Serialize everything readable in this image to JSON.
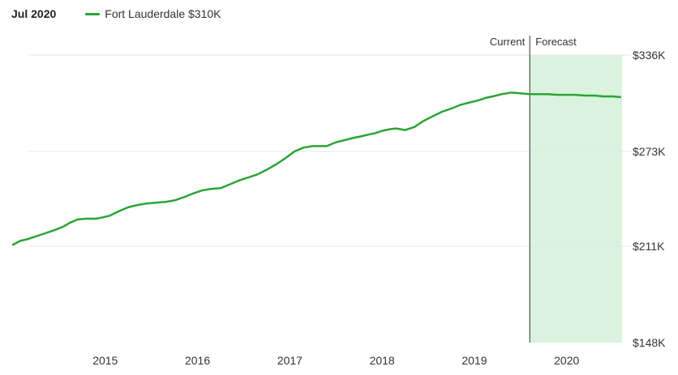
{
  "header": {
    "date": "Jul 2020",
    "legend_label": "Fort Lauderdale $310K"
  },
  "colors": {
    "series": "#2aa534",
    "forecast_fill": "#d9f3de",
    "grid": "#e6e6e6",
    "divider": "#333333"
  },
  "chart_data": {
    "type": "line",
    "x_tick_labels": [
      "2015",
      "2016",
      "2017",
      "2018",
      "2019",
      "2020"
    ],
    "x_tick_values": [
      2015,
      2016,
      2017,
      2018,
      2019,
      2020
    ],
    "xlim": [
      2014.0,
      2020.6
    ],
    "y_tick_labels": [
      "$148K",
      "$211K",
      "$273K",
      "$336K"
    ],
    "y_tick_values": [
      148,
      211,
      273,
      336
    ],
    "ylim": [
      148,
      336
    ],
    "grid": true,
    "marker": {
      "x": 2019.6,
      "current_label": "Current",
      "forecast_label": "Forecast"
    },
    "forecast_range": [
      2019.6,
      2020.6
    ],
    "series": [
      {
        "name": "Fort Lauderdale",
        "x": [
          2014.0,
          2014.08,
          2014.15,
          2014.25,
          2014.35,
          2014.45,
          2014.55,
          2014.62,
          2014.7,
          2014.8,
          2014.9,
          2014.98,
          2015.05,
          2015.15,
          2015.25,
          2015.35,
          2015.45,
          2015.55,
          2015.65,
          2015.75,
          2015.85,
          2015.95,
          2016.05,
          2016.15,
          2016.25,
          2016.35,
          2016.45,
          2016.55,
          2016.65,
          2016.75,
          2016.85,
          2016.95,
          2017.05,
          2017.15,
          2017.25,
          2017.3,
          2017.4,
          2017.5,
          2017.6,
          2017.7,
          2017.78,
          2017.85,
          2017.93,
          2018.0,
          2018.08,
          2018.15,
          2018.25,
          2018.35,
          2018.45,
          2018.55,
          2018.65,
          2018.75,
          2018.85,
          2018.95,
          2019.05,
          2019.12,
          2019.2,
          2019.3,
          2019.4,
          2019.5,
          2019.6,
          2019.7,
          2019.8,
          2019.9,
          2020.0,
          2020.1,
          2020.2,
          2020.3,
          2020.4,
          2020.5,
          2020.58
        ],
        "values": [
          212,
          214.5,
          215.5,
          217.5,
          219.5,
          221.5,
          224,
          226.5,
          228.5,
          229,
          229,
          230,
          231,
          234,
          236.5,
          238,
          239,
          239.5,
          240,
          241,
          243,
          245.5,
          247.5,
          248.5,
          249,
          251.5,
          254,
          256,
          258,
          261,
          264.5,
          268.5,
          273,
          275.5,
          276.5,
          276.5,
          276.5,
          279,
          280.5,
          282,
          283,
          284,
          285,
          286.5,
          287.5,
          288,
          287,
          289,
          293,
          296,
          299,
          301,
          303.5,
          305,
          306.5,
          308,
          309,
          310.5,
          311.5,
          311,
          310.5,
          310.5,
          310.5,
          310,
          310,
          310,
          309.5,
          309.5,
          309,
          309,
          308.5
        ]
      }
    ]
  }
}
